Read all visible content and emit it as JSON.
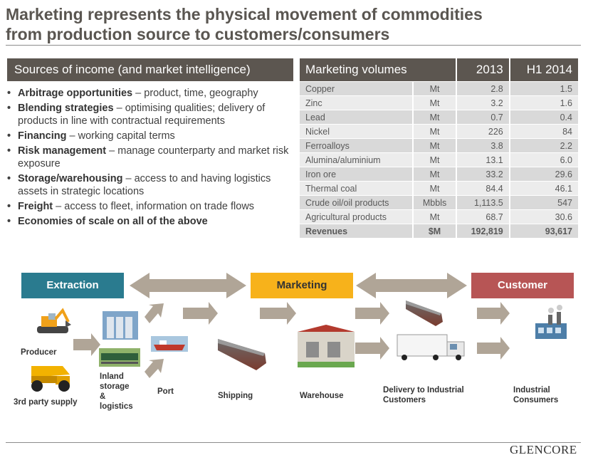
{
  "title": {
    "line1": "Marketing represents the physical movement of commodities",
    "line2": "from production source to customers/consumers"
  },
  "income": {
    "header": "Sources of income (and market intelligence)",
    "bullets": [
      {
        "bold": "Arbitrage opportunities",
        "sep": " – ",
        "text": "product, time, geography"
      },
      {
        "bold": "Blending strategies",
        "sep": " – ",
        "text": "optimising qualities; delivery of products in line with contractual requirements"
      },
      {
        "bold": "Financing",
        "sep": " – ",
        "text": "working capital terms"
      },
      {
        "bold": "Risk management",
        "sep": " – ",
        "text": "manage counterparty and market risk exposure"
      },
      {
        "bold": "Storage/warehousing",
        "sep": " – ",
        "text": "access to and having logistics assets in strategic locations"
      },
      {
        "bold": "Freight",
        "sep": " – ",
        "text": "access to fleet, information on trade flows"
      },
      {
        "bold": "Economies of scale on all of the above",
        "sep": "",
        "text": ""
      }
    ]
  },
  "volumes": {
    "header": "Marketing volumes",
    "col_2013": "2013",
    "col_h1_2014": "H1 2014",
    "rows": [
      {
        "name": "Copper",
        "unit": "Mt",
        "y2013": "2.8",
        "h12014": "1.5"
      },
      {
        "name": "Zinc",
        "unit": "Mt",
        "y2013": "3.2",
        "h12014": "1.6"
      },
      {
        "name": "Lead",
        "unit": "Mt",
        "y2013": "0.7",
        "h12014": "0.4"
      },
      {
        "name": "Nickel",
        "unit": "Mt",
        "y2013": "226",
        "h12014": "84"
      },
      {
        "name": "Ferroalloys",
        "unit": "Mt",
        "y2013": "3.8",
        "h12014": "2.2"
      },
      {
        "name": "Alumina/aluminium",
        "unit": "Mt",
        "y2013": "13.1",
        "h12014": "6.0"
      },
      {
        "name": "Iron ore",
        "unit": "Mt",
        "y2013": "33.2",
        "h12014": "29.6"
      },
      {
        "name": "Thermal coal",
        "unit": "Mt",
        "y2013": "84.4",
        "h12014": "46.1"
      },
      {
        "name": "Crude oil/oil products",
        "unit": "Mbbls",
        "y2013": "1,113.5",
        "h12014": "547"
      },
      {
        "name": "Agricultural products",
        "unit": "Mt",
        "y2013": "68.7",
        "h12014": "30.6"
      }
    ],
    "revenues": {
      "name": "Revenues",
      "unit": "$M",
      "y2013": "192,819",
      "h12014": "93,617"
    }
  },
  "flow": {
    "stages": {
      "extraction": "Extraction",
      "marketing": "Marketing",
      "customer": "Customer"
    },
    "labels": {
      "producer": "Producer",
      "third_party": "3rd party supply",
      "inland_1": "Inland",
      "inland_2": "storage",
      "inland_3": "&",
      "inland_4": "logistics",
      "port": "Port",
      "shipping": "Shipping",
      "warehouse": "Warehouse",
      "delivery_1": "Delivery to Industrial",
      "delivery_2": "Customers",
      "industrial_1": "Industrial",
      "industrial_2": "Consumers"
    },
    "colors": {
      "extraction": "#2a7b8f",
      "marketing": "#f7b21b",
      "customer": "#b75555",
      "arrow": "#b0a597"
    }
  },
  "footer": {
    "logo": "GLENCORE"
  }
}
